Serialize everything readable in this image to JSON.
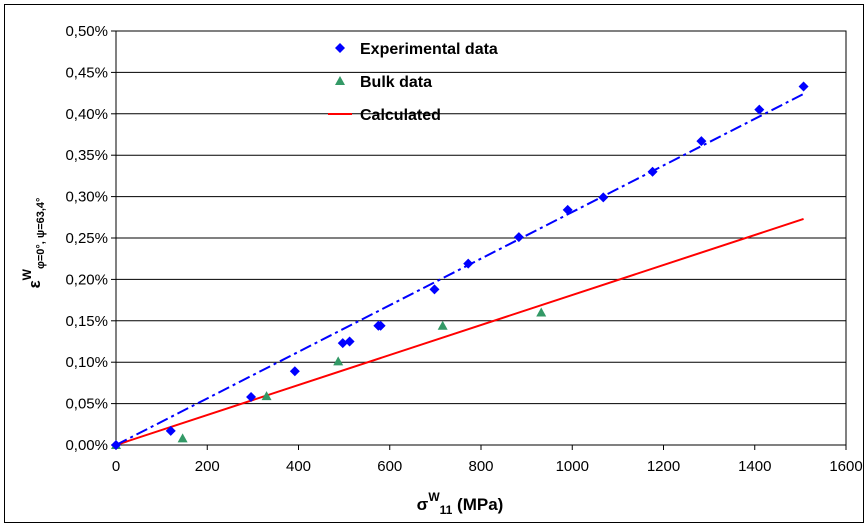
{
  "chart_data": {
    "type": "scatter",
    "xlim": [
      0,
      1600
    ],
    "ylim": [
      0,
      0.5
    ],
    "x_ticks": [
      "0",
      "200",
      "400",
      "600",
      "800",
      "1000",
      "1200",
      "1400",
      "1600"
    ],
    "y_ticks": [
      "0,00%",
      "0,05%",
      "0,10%",
      "0,15%",
      "0,20%",
      "0,25%",
      "0,30%",
      "0,35%",
      "0,40%",
      "0,45%",
      "0,50%"
    ],
    "y_grid": true,
    "legend_position": "top-left",
    "xlabel": {
      "base": "σ",
      "sup": "W",
      "sub": "11",
      "unit": " (MPa)"
    },
    "ylabel": {
      "base": "ε",
      "sup": "W",
      "sub": "φ=0°, ψ=63,4°"
    },
    "series": [
      {
        "name": "Experimental data",
        "marker": "diamond",
        "color": "#0000ff",
        "x": [
          0,
          120,
          296,
          392,
          497,
          512,
          575,
          580,
          698,
          772,
          883,
          990,
          1068,
          1176,
          1283,
          1410,
          1507
        ],
        "y": [
          0.0,
          0.017,
          0.058,
          0.089,
          0.123,
          0.125,
          0.144,
          0.144,
          0.188,
          0.219,
          0.251,
          0.284,
          0.299,
          0.33,
          0.367,
          0.405,
          0.433
        ]
      },
      {
        "name": "Bulk data",
        "marker": "triangle",
        "color": "#339966",
        "x": [
          0,
          146,
          330,
          487,
          716,
          932
        ],
        "y": [
          0.0,
          0.008,
          0.059,
          0.101,
          0.144,
          0.16
        ]
      },
      {
        "name": "Calculated",
        "marker": "line",
        "color": "#ff0000",
        "x": [
          0,
          1507
        ],
        "y": [
          0.0,
          0.273
        ]
      }
    ],
    "trendline": {
      "style": "dash-dot",
      "color": "#0000ff",
      "x": [
        0,
        1507
      ],
      "y": [
        0.0,
        0.424
      ]
    }
  }
}
